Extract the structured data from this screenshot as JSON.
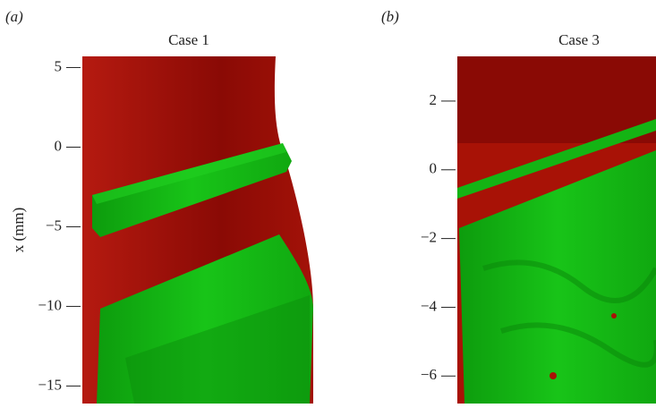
{
  "chart_data": [
    {
      "type": "surface",
      "panel_label": "(a)",
      "title": "Case 1",
      "ylabel": "x (mm)",
      "ylim": [
        -16.1,
        5.7
      ],
      "yticks": [
        {
          "value": 5,
          "label": "5"
        },
        {
          "value": 0,
          "label": "0"
        },
        {
          "value": -5,
          "label": "−5"
        },
        {
          "value": -10,
          "label": "−10"
        },
        {
          "value": -15,
          "label": "−15"
        }
      ]
    },
    {
      "type": "surface",
      "panel_label": "(b)",
      "title": "Case 3",
      "ylim": [
        -6.8,
        3.3
      ],
      "yticks": [
        {
          "value": 2,
          "label": "2"
        },
        {
          "value": 0,
          "label": "0"
        },
        {
          "value": -2,
          "label": "−2"
        },
        {
          "value": -4,
          "label": "−4"
        },
        {
          "value": -6,
          "label": "−6"
        }
      ]
    }
  ]
}
